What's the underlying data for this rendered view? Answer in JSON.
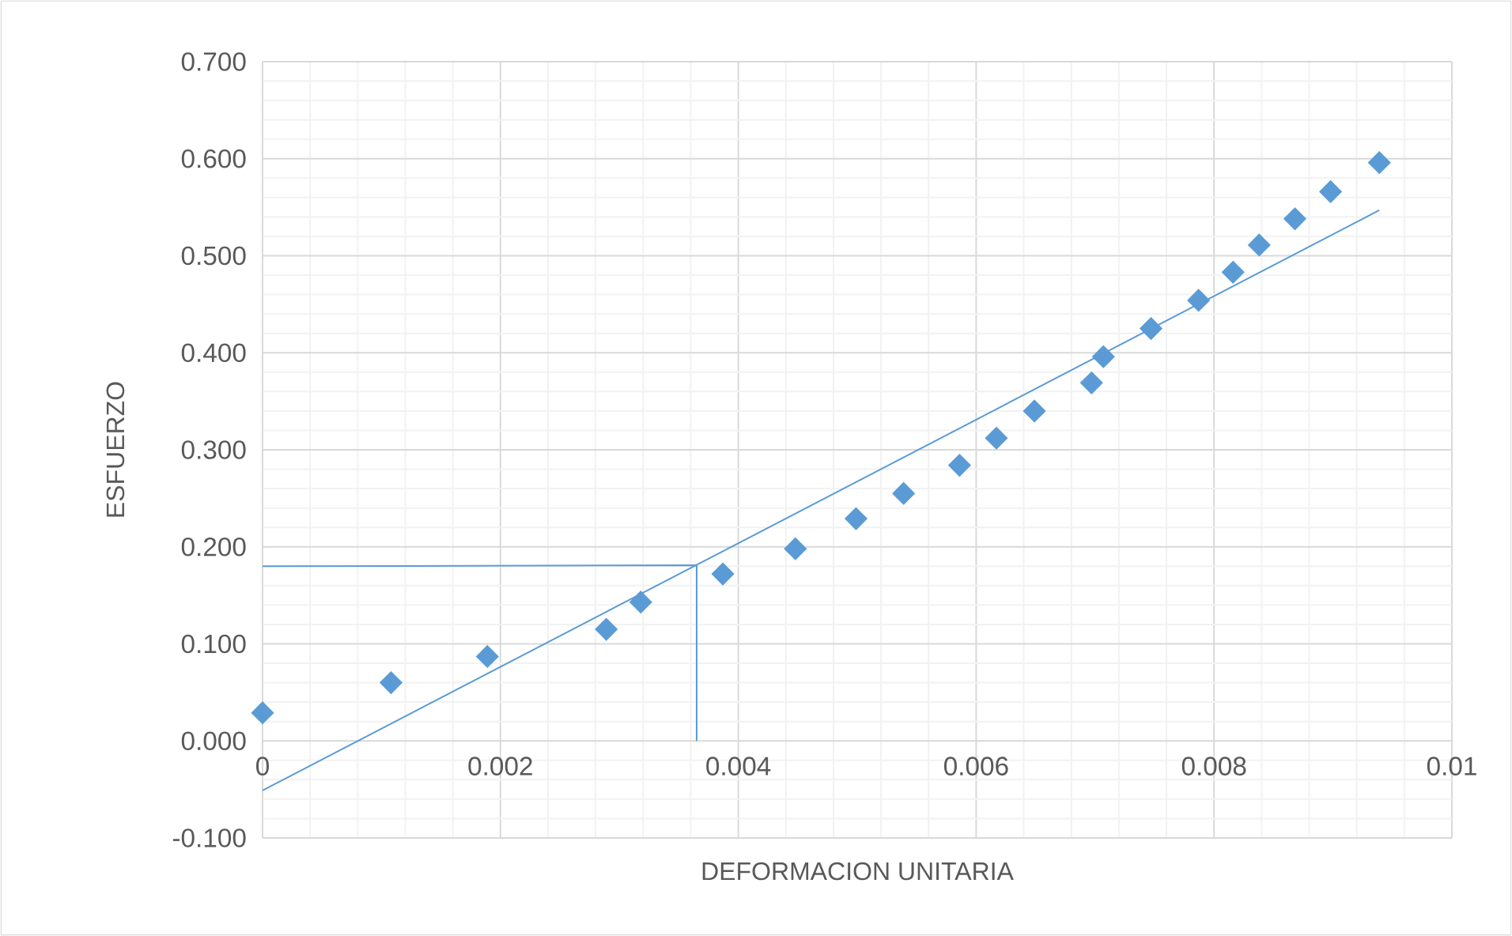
{
  "chart_data": {
    "type": "scatter",
    "xlabel": "DEFORMACION UNITARIA",
    "ylabel": "ESFUERZO",
    "xlim": [
      0,
      0.01
    ],
    "ylim": [
      -0.1,
      0.7
    ],
    "xticks": [
      0,
      0.002,
      0.004,
      0.006,
      0.008,
      0.01
    ],
    "yticks": [
      {
        "value": -0.1,
        "label": "-0.100"
      },
      {
        "value": 0,
        "label": "0.000"
      },
      {
        "value": 0.1,
        "label": "0.100"
      },
      {
        "value": 0.2,
        "label": "0.200"
      },
      {
        "value": 0.3,
        "label": "0.300"
      },
      {
        "value": 0.4,
        "label": "0.400"
      },
      {
        "value": 0.5,
        "label": "0.500"
      },
      {
        "value": 0.6,
        "label": "0.600"
      },
      {
        "value": 0.7,
        "label": "0.700"
      }
    ],
    "grid": true,
    "series": [
      {
        "type": "scatter",
        "marker": "diamond",
        "color": "#5b9bd5",
        "x": [
          0,
          0.00108,
          0.00189,
          0.00289,
          0.00318,
          0.00387,
          0.00448,
          0.00499,
          0.00539,
          0.00586,
          0.00617,
          0.00649,
          0.00697,
          0.00707,
          0.00747,
          0.00787,
          0.00816,
          0.00838,
          0.00868,
          0.00898,
          0.00939
        ],
        "values": [
          0.029,
          0.06,
          0.087,
          0.115,
          0.143,
          0.172,
          0.198,
          0.229,
          0.255,
          0.284,
          0.312,
          0.34,
          0.369,
          0.396,
          0.425,
          0.454,
          0.483,
          0.511,
          0.538,
          0.566,
          0.596
        ]
      },
      {
        "type": "line",
        "marker": "none",
        "color": "#5b9bd5",
        "x": [
          0,
          0.00939
        ],
        "values": [
          -0.051,
          0.547
        ]
      },
      {
        "type": "line",
        "marker": "none",
        "color": "#5b9bd5",
        "x": [
          0,
          0.00365,
          0.00365
        ],
        "values": [
          0.18,
          0.181,
          0
        ]
      }
    ]
  }
}
